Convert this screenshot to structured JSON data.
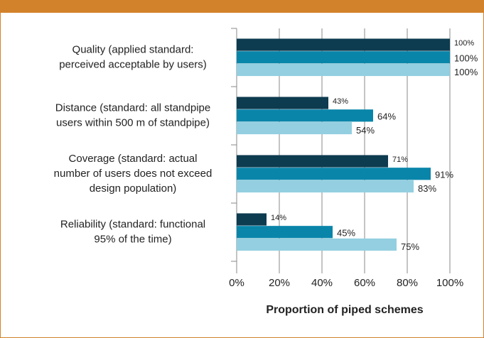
{
  "chart_data": {
    "type": "hbar",
    "categories": [
      [
        "Quality (applied standard:",
        "perceived acceptable by users)"
      ],
      [
        "Distance (standard: all standpipe",
        "users within 500 m of standpipe)"
      ],
      [
        "Coverage (standard: actual",
        "number of users does not exceed",
        "design population)"
      ],
      [
        "Reliability  (standard: functional",
        "95% of the time)"
      ]
    ],
    "series": [
      {
        "color": "#0d3b50",
        "values": [
          100,
          43,
          71,
          14
        ],
        "value_labels": [
          "100%",
          "43%",
          "71%",
          "14%"
        ]
      },
      {
        "color": "#0a85aa",
        "values": [
          100,
          64,
          91,
          45
        ],
        "value_labels": [
          "100%",
          "64%",
          "91%",
          "45%"
        ]
      },
      {
        "color": "#93cfe0",
        "values": [
          100,
          54,
          83,
          75
        ],
        "value_labels": [
          "100%",
          "54%",
          "83%",
          "75%"
        ]
      }
    ],
    "xlabel": "Proportion of piped schemes",
    "xlim": [
      0,
      100
    ],
    "xticks": [
      {
        "value": 0,
        "label": "0%"
      },
      {
        "value": 20,
        "label": "20%"
      },
      {
        "value": 40,
        "label": "40%"
      },
      {
        "value": 60,
        "label": "60%"
      },
      {
        "value": 80,
        "label": "80%"
      },
      {
        "value": 100,
        "label": "100%"
      }
    ],
    "grid": true
  }
}
